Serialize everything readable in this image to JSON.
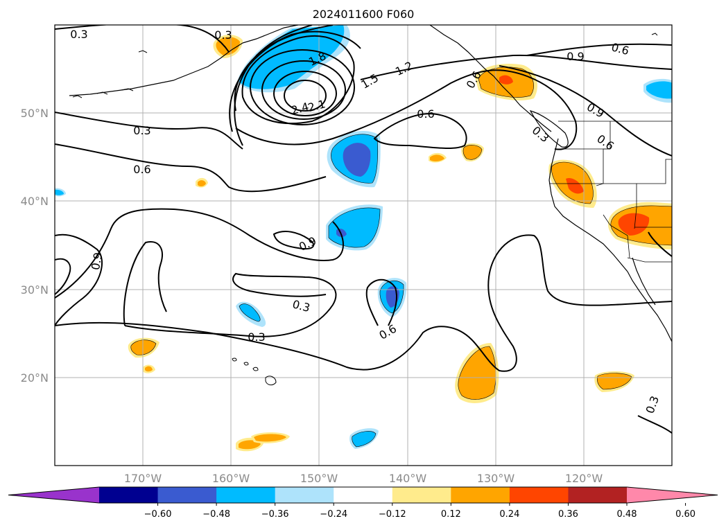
{
  "title": "2024011600 F060",
  "map": {
    "lat_labels": [
      "50°N",
      "40°N",
      "30°N",
      "20°N"
    ],
    "lon_labels": [
      "170°W",
      "160°W",
      "150°W",
      "140°W",
      "130°W",
      "120°W"
    ],
    "grid": true
  },
  "contour_labels": [
    "0.3",
    "0.3",
    "0.3",
    "0.6",
    "0.9",
    "1.8",
    "2.4",
    "2.1",
    "1.5",
    "1.2",
    "0.6",
    "0.9",
    "0.6",
    "0.3",
    "0.9",
    "0.9",
    "0.6",
    "0.3",
    "0.6",
    "0.6",
    "0.3",
    "0.3"
  ],
  "colorbar": {
    "ticks": [
      "−0.60",
      "−0.48",
      "−0.36",
      "−0.24",
      "−0.12",
      "0.12",
      "0.24",
      "0.36",
      "0.48",
      "0.60"
    ],
    "colors": [
      "#9933cc",
      "#000090",
      "#3a5bd0",
      "#00bbff",
      "#aee3fb",
      "#ffffff",
      "#ffeb8c",
      "#ffa500",
      "#ff4500",
      "#b22222",
      "#ff88aa"
    ]
  },
  "colors": {
    "purple": "#9933cc",
    "navy": "#000090",
    "royal": "#3a5bd0",
    "sky": "#00bbff",
    "lightblue": "#aee3fb",
    "lightyellow": "#ffeb8c",
    "orange": "#ffa500",
    "redorange": "#ff4500",
    "firebrick": "#b22222",
    "pink": "#ff88aa"
  }
}
